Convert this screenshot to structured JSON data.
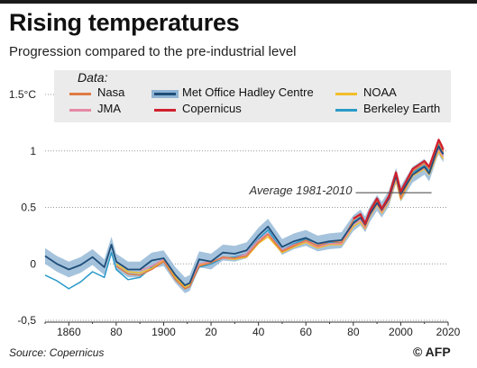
{
  "header": {
    "title": "Rising temperatures",
    "subtitle": "Progression compared to the pre-industrial level"
  },
  "footer": {
    "source": "Source: Copernicus",
    "credit": "© AFP"
  },
  "legend": {
    "title": "Data:",
    "items": [
      {
        "name": "Nasa",
        "color": "#e07b45"
      },
      {
        "name": "Met Office Hadley Centre",
        "color": "#1f4e7a",
        "band_color": "#8fb4d3"
      },
      {
        "name": "NOAA",
        "color": "#f2bd2a"
      },
      {
        "name": "JMA",
        "color": "#e58aa4"
      },
      {
        "name": "Copernicus",
        "color": "#d0202e"
      },
      {
        "name": "Berkeley Earth",
        "color": "#2a9ac9"
      }
    ]
  },
  "annotation": {
    "label": "Average 1981-2010",
    "value": 0.63,
    "x_range": [
      1981,
      2013
    ]
  },
  "chart_data": {
    "type": "line",
    "title": "Rising temperatures",
    "subtitle": "Progression compared to the pre-industrial level",
    "xlabel": "",
    "ylabel": "",
    "xlim": [
      1850,
      2020
    ],
    "ylim": [
      -0.5,
      1.5
    ],
    "x_ticks": [
      {
        "value": 1860,
        "label": "1860"
      },
      {
        "value": 1880,
        "label": "80"
      },
      {
        "value": 1900,
        "label": "1900"
      },
      {
        "value": 1920,
        "label": "20"
      },
      {
        "value": 1940,
        "label": "40"
      },
      {
        "value": 1960,
        "label": "60"
      },
      {
        "value": 1980,
        "label": "80"
      },
      {
        "value": 2000,
        "label": "2000"
      },
      {
        "value": 2020,
        "label": "2020"
      }
    ],
    "y_ticks": [
      {
        "value": -0.5,
        "label": "-0,5"
      },
      {
        "value": 0,
        "label": "0"
      },
      {
        "value": 0.5,
        "label": "0.5"
      },
      {
        "value": 1,
        "label": "1"
      },
      {
        "value": 1.5,
        "label": "1.5°C"
      }
    ],
    "grid": "horizontal dotted",
    "legend_position": "top",
    "x": [
      1850,
      1855,
      1860,
      1865,
      1870,
      1875,
      1878,
      1880,
      1885,
      1890,
      1895,
      1900,
      1905,
      1909,
      1911,
      1915,
      1920,
      1925,
      1930,
      1935,
      1940,
      1944,
      1950,
      1955,
      1960,
      1965,
      1970,
      1975,
      1980,
      1983,
      1985,
      1987,
      1990,
      1992,
      1995,
      1998,
      2000,
      2005,
      2010,
      2012,
      2015,
      2016,
      2017,
      2018
    ],
    "series": [
      {
        "name": "Met Office Hadley Centre",
        "values": [
          0.07,
          0.0,
          -0.05,
          -0.01,
          0.06,
          -0.03,
          0.17,
          0.02,
          -0.05,
          -0.05,
          0.03,
          0.05,
          -0.1,
          -0.19,
          -0.17,
          0.04,
          0.02,
          0.1,
          0.09,
          0.12,
          0.25,
          0.33,
          0.15,
          0.2,
          0.23,
          0.18,
          0.2,
          0.21,
          0.36,
          0.41,
          0.35,
          0.44,
          0.54,
          0.48,
          0.58,
          0.78,
          0.62,
          0.79,
          0.86,
          0.8,
          0.99,
          1.04,
          1.0,
          0.97
        ],
        "band": 0.07
      },
      {
        "name": "Nasa",
        "values": [
          null,
          null,
          null,
          null,
          null,
          null,
          null,
          -0.02,
          -0.09,
          -0.1,
          -0.05,
          0.02,
          -0.14,
          -0.22,
          -0.2,
          -0.02,
          0.01,
          0.06,
          0.05,
          0.07,
          0.19,
          0.26,
          0.11,
          0.16,
          0.21,
          0.16,
          0.2,
          0.19,
          0.39,
          0.43,
          0.33,
          0.45,
          0.56,
          0.47,
          0.58,
          0.78,
          0.58,
          0.82,
          0.89,
          0.84,
          1.02,
          1.08,
          1.03,
          0.99
        ]
      },
      {
        "name": "NOAA",
        "values": [
          null,
          null,
          null,
          null,
          null,
          null,
          null,
          0.0,
          -0.07,
          -0.08,
          -0.04,
          0.03,
          -0.12,
          -0.21,
          -0.18,
          -0.01,
          0.02,
          0.05,
          0.04,
          0.06,
          0.18,
          0.24,
          0.1,
          0.15,
          0.19,
          0.14,
          0.17,
          0.17,
          0.33,
          0.37,
          0.31,
          0.42,
          0.52,
          0.45,
          0.55,
          0.74,
          0.57,
          0.78,
          0.84,
          0.79,
          0.95,
          1.0,
          0.96,
          0.93
        ]
      },
      {
        "name": "JMA",
        "values": [
          null,
          null,
          null,
          null,
          null,
          null,
          null,
          null,
          null,
          -0.06,
          -0.02,
          0.04,
          -0.1,
          -0.19,
          -0.17,
          0.0,
          0.02,
          0.05,
          0.05,
          0.09,
          0.21,
          0.27,
          0.12,
          0.17,
          0.2,
          0.15,
          0.18,
          0.18,
          0.35,
          0.39,
          0.32,
          0.43,
          0.53,
          0.46,
          0.56,
          0.76,
          0.59,
          0.79,
          0.85,
          0.8,
          0.97,
          1.02,
          0.98,
          0.95
        ]
      },
      {
        "name": "Berkeley Earth",
        "values": [
          -0.1,
          -0.15,
          -0.22,
          -0.16,
          -0.07,
          -0.12,
          0.1,
          -0.05,
          -0.14,
          -0.12,
          -0.03,
          0.03,
          -0.13,
          -0.22,
          -0.2,
          -0.03,
          0.0,
          0.05,
          0.06,
          0.09,
          0.22,
          0.3,
          0.12,
          0.18,
          0.22,
          0.15,
          0.19,
          0.19,
          0.37,
          0.41,
          0.34,
          0.45,
          0.55,
          0.47,
          0.58,
          0.79,
          0.61,
          0.81,
          0.87,
          0.83,
          1.01,
          1.06,
          1.02,
          0.98
        ]
      },
      {
        "name": "Copernicus",
        "values": [
          null,
          null,
          null,
          null,
          null,
          null,
          null,
          null,
          null,
          null,
          null,
          null,
          null,
          null,
          null,
          null,
          null,
          null,
          null,
          null,
          null,
          null,
          null,
          null,
          null,
          null,
          null,
          null,
          0.4,
          0.44,
          0.36,
          0.47,
          0.58,
          0.49,
          0.6,
          0.81,
          0.64,
          0.84,
          0.91,
          0.86,
          1.04,
          1.1,
          1.06,
          1.01
        ]
      }
    ]
  }
}
